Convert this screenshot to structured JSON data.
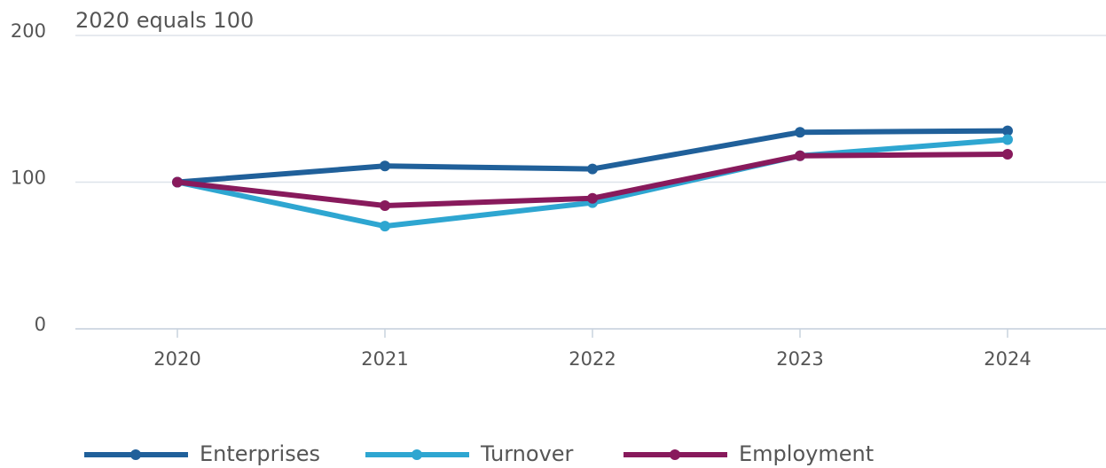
{
  "chart_data": {
    "type": "line",
    "title": "2020 equals 100",
    "categories": [
      "2020",
      "2021",
      "2022",
      "2023",
      "2024"
    ],
    "series": [
      {
        "name": "Enterprises",
        "color": "#20609a",
        "values": [
          100,
          111,
          109,
          134,
          135
        ]
      },
      {
        "name": "Turnover",
        "color": "#2ea6d1",
        "values": [
          100,
          70,
          86,
          118,
          129
        ]
      },
      {
        "name": "Employment",
        "color": "#881a5c",
        "values": [
          100,
          84,
          89,
          118,
          119
        ]
      }
    ],
    "ylim": [
      0,
      200
    ],
    "yticks": [
      0,
      100,
      200
    ],
    "grid": true
  }
}
